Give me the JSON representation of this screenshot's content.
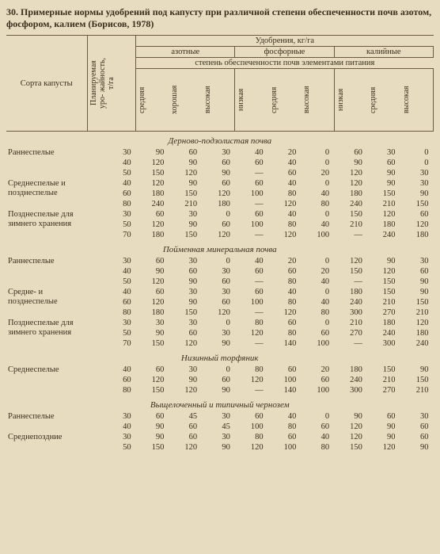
{
  "title": "30. Примерные нормы удобрений под капусту при различной степени обеспеченности почв азотом, фосфором, калием (Борисов, 1978)",
  "headers": {
    "variety": "Сорта капусты",
    "yield": "Планируемая уро-\nжайность, т/га",
    "fertilizers": "Удобрения, кг/га",
    "nitrogen": "азотные",
    "phosphorus": "фосфорные",
    "potassium": "калийные",
    "provision": "степень обеспеченности почв элементами питания",
    "levels_n": [
      "средняя",
      "хорошая",
      "высокая"
    ],
    "levels_pk": [
      "низкая",
      "средняя",
      "высокая"
    ]
  },
  "sections": [
    {
      "name": "Дерново-подзолистая почва",
      "groups": [
        {
          "variety": "Раннеспелые",
          "rows": [
            {
              "y": 30,
              "v": [
                90,
                60,
                30,
                40,
                20,
                0,
                60,
                30,
                0
              ]
            },
            {
              "y": 40,
              "v": [
                120,
                90,
                60,
                60,
                40,
                0,
                90,
                60,
                0
              ]
            },
            {
              "y": 50,
              "v": [
                150,
                120,
                90,
                "—",
                60,
                20,
                120,
                90,
                30
              ]
            }
          ]
        },
        {
          "variety": "Среднеспелые и позднеспелые",
          "rows": [
            {
              "y": 40,
              "v": [
                120,
                90,
                60,
                60,
                40,
                0,
                120,
                90,
                30
              ]
            },
            {
              "y": 60,
              "v": [
                180,
                150,
                120,
                100,
                80,
                40,
                180,
                150,
                90
              ]
            },
            {
              "y": 80,
              "v": [
                240,
                210,
                180,
                "—",
                120,
                80,
                240,
                210,
                150
              ]
            }
          ]
        },
        {
          "variety": "Позднеспелые для зимнего хранения",
          "rows": [
            {
              "y": 30,
              "v": [
                60,
                30,
                0,
                60,
                40,
                0,
                150,
                120,
                60
              ]
            },
            {
              "y": 50,
              "v": [
                120,
                90,
                60,
                100,
                80,
                40,
                210,
                180,
                120
              ]
            },
            {
              "y": 70,
              "v": [
                180,
                150,
                120,
                "—",
                120,
                100,
                "—",
                240,
                180
              ]
            }
          ]
        }
      ]
    },
    {
      "name": "Пойменная минеральная почва",
      "groups": [
        {
          "variety": "Раннеспелые",
          "rows": [
            {
              "y": 30,
              "v": [
                60,
                30,
                0,
                40,
                20,
                0,
                120,
                90,
                30
              ]
            },
            {
              "y": 40,
              "v": [
                90,
                60,
                30,
                60,
                60,
                20,
                150,
                120,
                60
              ]
            },
            {
              "y": 50,
              "v": [
                120,
                90,
                60,
                "—",
                80,
                40,
                "—",
                150,
                90
              ]
            }
          ]
        },
        {
          "variety": "Средне- и позднеспелые",
          "rows": [
            {
              "y": 40,
              "v": [
                60,
                30,
                30,
                60,
                40,
                0,
                180,
                150,
                90
              ]
            },
            {
              "y": 60,
              "v": [
                120,
                90,
                60,
                100,
                80,
                40,
                240,
                210,
                150
              ]
            },
            {
              "y": 80,
              "v": [
                180,
                150,
                120,
                "—",
                120,
                80,
                300,
                270,
                210
              ]
            }
          ]
        },
        {
          "variety": "Позднеспелые для зимнего хранения",
          "rows": [
            {
              "y": 30,
              "v": [
                30,
                30,
                0,
                80,
                60,
                0,
                210,
                180,
                120
              ]
            },
            {
              "y": 50,
              "v": [
                90,
                60,
                30,
                120,
                80,
                60,
                270,
                240,
                180
              ]
            },
            {
              "y": 70,
              "v": [
                150,
                120,
                90,
                "—",
                140,
                100,
                "—",
                300,
                240
              ]
            }
          ]
        }
      ]
    },
    {
      "name": "Низинный торфяник",
      "groups": [
        {
          "variety": "Среднеспелые",
          "rows": [
            {
              "y": 40,
              "v": [
                60,
                30,
                0,
                80,
                60,
                20,
                180,
                150,
                90
              ]
            },
            {
              "y": 60,
              "v": [
                120,
                90,
                60,
                120,
                100,
                60,
                240,
                210,
                150
              ]
            },
            {
              "y": 80,
              "v": [
                150,
                120,
                90,
                "—",
                140,
                100,
                300,
                270,
                210
              ]
            }
          ]
        }
      ]
    },
    {
      "name": "Выщелоченный и типичный чернозем",
      "groups": [
        {
          "variety": "Раннеспелые",
          "rows": [
            {
              "y": 30,
              "v": [
                60,
                45,
                30,
                60,
                40,
                0,
                90,
                60,
                30
              ]
            },
            {
              "y": 40,
              "v": [
                90,
                60,
                45,
                100,
                80,
                60,
                120,
                90,
                60
              ]
            }
          ]
        },
        {
          "variety": "Среднепоздние",
          "rows": [
            {
              "y": 30,
              "v": [
                90,
                60,
                30,
                80,
                60,
                40,
                120,
                90,
                60
              ]
            },
            {
              "y": 50,
              "v": [
                150,
                120,
                90,
                120,
                100,
                80,
                150,
                120,
                90
              ]
            }
          ]
        }
      ]
    }
  ]
}
